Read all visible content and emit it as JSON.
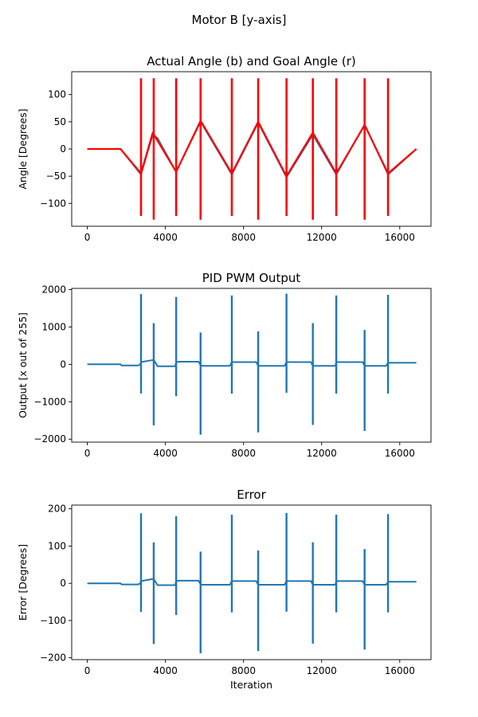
{
  "figure": {
    "suptitle": "Motor B [y-axis]"
  },
  "colors": {
    "actual": "#4a6f9c",
    "goal": "#ff0000",
    "series": "#1f77b4"
  },
  "chart_data": [
    {
      "type": "line",
      "title": "Actual Angle (b) and Goal Angle (r)",
      "xlabel": "",
      "ylabel": "Angle [Degrees]",
      "xlim": [
        -800,
        17600
      ],
      "ylim": [
        -142,
        142
      ],
      "xticks": [
        0,
        4000,
        8000,
        12000,
        16000
      ],
      "yticks": [
        -100,
        -50,
        0,
        50,
        100
      ],
      "series": [
        {
          "color": "#4a6f9c",
          "x": [
            0,
            1700,
            2750,
            3350,
            3600,
            4550,
            5800,
            7400,
            8750,
            10200,
            11550,
            12750,
            14200,
            15400,
            16850
          ],
          "y": [
            0,
            0,
            -47,
            26,
            20,
            -42,
            50,
            -47,
            48,
            -52,
            26,
            -47,
            45,
            -47,
            0
          ]
        },
        {
          "color": "#ff0000",
          "x": [
            0,
            1700,
            2750,
            3350,
            4550,
            5800,
            7400,
            8750,
            10200,
            11550,
            12750,
            14200,
            15400,
            16850
          ],
          "y": [
            0,
            0,
            -45,
            30,
            -42,
            52,
            -45,
            50,
            -50,
            30,
            -45,
            44,
            -45,
            0
          ],
          "spikes": [
            {
              "x": 2750,
              "low": -123,
              "high": 130
            },
            {
              "x": 3400,
              "low": -130,
              "high": 130
            },
            {
              "x": 4550,
              "low": -123,
              "high": 130
            },
            {
              "x": 5800,
              "low": -130,
              "high": 130
            },
            {
              "x": 7400,
              "low": -123,
              "high": 130
            },
            {
              "x": 8750,
              "low": -130,
              "high": 130
            },
            {
              "x": 10200,
              "low": -123,
              "high": 130
            },
            {
              "x": 11550,
              "low": -130,
              "high": 130
            },
            {
              "x": 12750,
              "low": -123,
              "high": 130
            },
            {
              "x": 14200,
              "low": -130,
              "high": 130
            },
            {
              "x": 15400,
              "low": -123,
              "high": 130
            }
          ]
        }
      ]
    },
    {
      "type": "line",
      "title": "PID PWM Output",
      "xlabel": "",
      "ylabel": "Output [x out of 255]",
      "xlim": [
        -800,
        17600
      ],
      "ylim": [
        -2080,
        2030
      ],
      "xticks": [
        0,
        4000,
        8000,
        12000,
        16000
      ],
      "yticks": [
        -2000,
        -1000,
        0,
        1000,
        2000
      ],
      "series": [
        {
          "color": "#1f77b4",
          "x": [
            0,
            1700,
            1750,
            2600,
            2700,
            2750,
            3300,
            3400,
            3600,
            4500,
            4550,
            4700,
            5700,
            5800,
            5900,
            7300,
            7400,
            7500,
            8650,
            8750,
            8850,
            10100,
            10200,
            10300,
            11450,
            11550,
            11650,
            12700,
            12750,
            12850,
            14100,
            14200,
            14300,
            15300,
            15400,
            15500,
            16850
          ],
          "y": [
            0,
            0,
            -30,
            -30,
            -10,
            60,
            110,
            120,
            -50,
            -50,
            60,
            70,
            70,
            -30,
            -40,
            -40,
            60,
            60,
            60,
            -40,
            -40,
            -40,
            60,
            60,
            60,
            -40,
            -40,
            -40,
            60,
            60,
            60,
            -40,
            -40,
            -40,
            40,
            40,
            40
          ],
          "spikes": [
            {
              "x": 2750,
              "low": -780,
              "high": 1880
            },
            {
              "x": 3400,
              "low": -1630,
              "high": 1100
            },
            {
              "x": 4550,
              "low": -850,
              "high": 1800
            },
            {
              "x": 5800,
              "low": -1880,
              "high": 850
            },
            {
              "x": 7400,
              "low": -780,
              "high": 1840
            },
            {
              "x": 8750,
              "low": -1820,
              "high": 880
            },
            {
              "x": 10200,
              "low": -760,
              "high": 1890
            },
            {
              "x": 11550,
              "low": -1620,
              "high": 1100
            },
            {
              "x": 12750,
              "low": -780,
              "high": 1840
            },
            {
              "x": 14200,
              "low": -1780,
              "high": 920
            },
            {
              "x": 15400,
              "low": -780,
              "high": 1860
            }
          ]
        }
      ]
    },
    {
      "type": "line",
      "title": "Error",
      "xlabel": "Iteration",
      "ylabel": "Error [Degrees]",
      "xlim": [
        -800,
        17600
      ],
      "ylim": [
        -205,
        210
      ],
      "xticks": [
        0,
        4000,
        8000,
        12000,
        16000
      ],
      "yticks": [
        -200,
        -100,
        0,
        100,
        200
      ],
      "series": [
        {
          "color": "#1f77b4",
          "x": [
            0,
            1700,
            1750,
            2600,
            2700,
            2750,
            3300,
            3400,
            3600,
            4500,
            4550,
            4700,
            5700,
            5800,
            5900,
            7300,
            7400,
            7500,
            8650,
            8750,
            8850,
            10100,
            10200,
            10300,
            11450,
            11550,
            11650,
            12700,
            12750,
            12850,
            14100,
            14200,
            14300,
            15300,
            15400,
            15500,
            16850
          ],
          "y": [
            0,
            0,
            -3,
            -3,
            -1,
            6,
            11,
            12,
            -5,
            -5,
            6,
            7,
            7,
            -3,
            -4,
            -4,
            6,
            6,
            6,
            -4,
            -4,
            -4,
            6,
            6,
            6,
            -4,
            -4,
            -4,
            6,
            6,
            6,
            -4,
            -4,
            -4,
            4,
            4,
            4
          ],
          "spikes": [
            {
              "x": 2750,
              "low": -77,
              "high": 188
            },
            {
              "x": 3400,
              "low": -163,
              "high": 110
            },
            {
              "x": 4550,
              "low": -85,
              "high": 180
            },
            {
              "x": 5800,
              "low": -188,
              "high": 85
            },
            {
              "x": 7400,
              "low": -78,
              "high": 184
            },
            {
              "x": 8750,
              "low": -182,
              "high": 88
            },
            {
              "x": 10200,
              "low": -76,
              "high": 189
            },
            {
              "x": 11550,
              "low": -162,
              "high": 110
            },
            {
              "x": 12750,
              "low": -78,
              "high": 184
            },
            {
              "x": 14200,
              "low": -178,
              "high": 92
            },
            {
              "x": 15400,
              "low": -78,
              "high": 186
            }
          ]
        }
      ]
    }
  ]
}
